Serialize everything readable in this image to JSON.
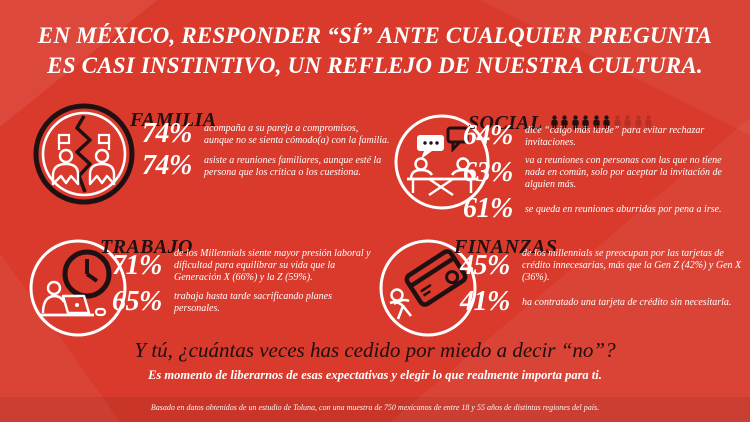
{
  "headline": {
    "line1": "EN MÉXICO, RESPONDER “SÍ” ANTE CUALQUIER PREGUNTA",
    "line2": "ES CASI INSTINTIVO, UN REFLEJO DE NUESTRA CULTURA."
  },
  "sections": [
    {
      "id": "familia",
      "title": "FAMILIA",
      "icon": "broken-family-icon",
      "stats": [
        {
          "value": "74%",
          "text": "acompaña a su pareja a compromisos, aunque no se sienta cómodo(a) con la familia."
        },
        {
          "value": "74%",
          "text": "asiste a reuniones familiares, aunque esté la persona que los critica o los cuestiona."
        }
      ]
    },
    {
      "id": "social",
      "title": "SOCIAL",
      "icon": "people-talking-table-icon",
      "stats": [
        {
          "value": "64%",
          "text": "dice “caigo más tarde” para evitar rechazar invitaciones."
        },
        {
          "value": "63%",
          "text": "va a reuniones con personas con las que no tiene nada en común, solo por aceptar la invitación de alguien más."
        },
        {
          "value": "61%",
          "text": "se queda en reuniones aburridas por pena a irse."
        }
      ]
    },
    {
      "id": "trabajo",
      "title": "TRABAJO",
      "icon": "clock-laptop-worker-icon",
      "stats": [
        {
          "value": "71%",
          "text": "de los Millennials siente mayor presión laboral y dificultad para equilibrar su vida que la Generación X (66%) y la Z (59%)."
        },
        {
          "value": "65%",
          "text": "trabaja hasta tarde sacrificando planes personales."
        }
      ]
    },
    {
      "id": "finanzas",
      "title": "FINANZAS",
      "icon": "credit-card-person-icon",
      "stats": [
        {
          "value": "45%",
          "text": "de los millennials se preocupan por las tarjetas de crédito innecesarias, más que la Gen Z (42%) y Gen X (36%)."
        },
        {
          "value": "41%",
          "text": "ha contratado una tarjeta de crédito sin necesitarla."
        }
      ]
    }
  ],
  "social_pictogram": {
    "filled": 6,
    "total": 10
  },
  "closing": {
    "question": "Y tú, ¿cuántas veces has cedido por miedo a decir “no”?",
    "message": "Es momento de liberarnos de esas expectativas y elegir lo que realmente importa para ti."
  },
  "footer": "Basado en datos obtenidos de un estudio de Toluna, con una muestra de 750 mexicanos de entre 18 y 55 años de distintas regiones del país.",
  "colors": {
    "background": "#D93A2C",
    "dark": "#201012",
    "white": "#FFFFFF"
  }
}
